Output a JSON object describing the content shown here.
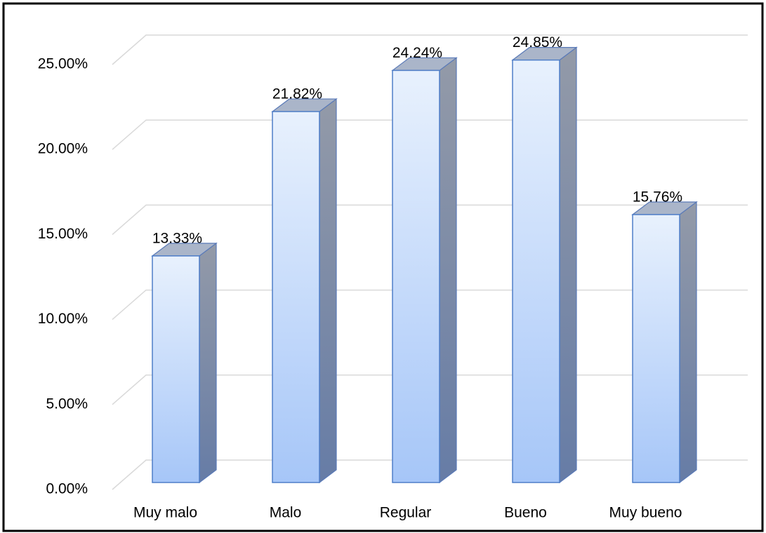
{
  "chart_data": {
    "type": "bar3d",
    "categories": [
      "Muy malo",
      "Malo",
      "Regular",
      "Bueno",
      "Muy bueno"
    ],
    "values": [
      13.33,
      21.82,
      24.24,
      24.85,
      15.76
    ],
    "value_labels": [
      "13.33%",
      "21.82%",
      "24.24%",
      "24.85%",
      "15.76%"
    ],
    "color": "#a8c8f8",
    "ylim": [
      0,
      25
    ],
    "yticks": [
      {
        "value": 0,
        "label": "0.00%"
      },
      {
        "value": 5,
        "label": "5.00%"
      },
      {
        "value": 10,
        "label": "10.00%"
      },
      {
        "value": 15,
        "label": "15.00%"
      },
      {
        "value": 20,
        "label": "20.00%"
      },
      {
        "value": 25,
        "label": "25.00%"
      }
    ],
    "grid": true
  }
}
